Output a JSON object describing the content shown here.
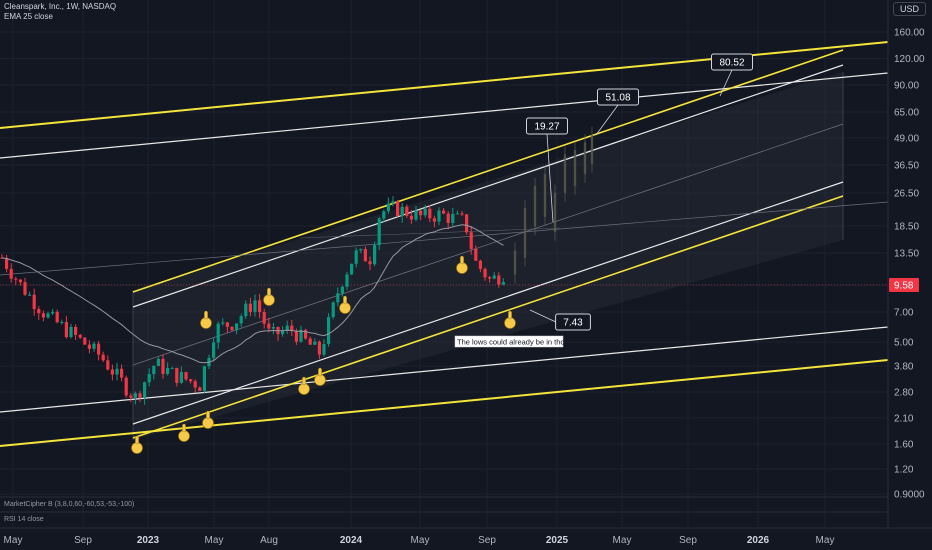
{
  "header": {
    "symbol_line": "Cleanspark, Inc., 1W, NASDAQ",
    "ema_line": "EMA 25 close",
    "indicator_line": "MarketCipher B (3,8,0,60,-60,53,-53,-100)",
    "indicator_line2": "RSI 14 close"
  },
  "currency": "USD",
  "price_axis": {
    "ticks": [
      "160.00",
      "120.00",
      "90.00",
      "65.00",
      "49.00",
      "36.50",
      "26.50",
      "18.50",
      "13.50",
      "9.58",
      "7.00",
      "5.00",
      "3.80",
      "2.80",
      "2.10",
      "1.60",
      "1.20",
      "0.9000"
    ],
    "current_price": "9.58",
    "current_color": "#f23645"
  },
  "time_axis": {
    "labels": [
      {
        "text": "May",
        "year": false
      },
      {
        "text": "Sep",
        "year": false
      },
      {
        "text": "2023",
        "year": true
      },
      {
        "text": "May",
        "year": false
      },
      {
        "text": "Aug",
        "year": false
      },
      {
        "text": "2024",
        "year": true
      },
      {
        "text": "May",
        "year": false
      },
      {
        "text": "Sep",
        "year": false
      },
      {
        "text": "2025",
        "year": true
      },
      {
        "text": "May",
        "year": false
      },
      {
        "text": "Sep",
        "year": false
      },
      {
        "text": "2026",
        "year": true
      },
      {
        "text": "May",
        "year": false
      }
    ]
  },
  "callouts": [
    "80.52",
    "51.08",
    "19.27",
    "7.43"
  ],
  "note": "The lows could already be in tho",
  "colors": {
    "background": "#131722",
    "up": "#089981",
    "down": "#f23645",
    "channel_yellow": "#f5e43a",
    "channel_white": "#e8e8e8",
    "hand": "#f7c948"
  },
  "chart_data": {
    "type": "candlestick",
    "scale": "log",
    "ylim": [
      0.9,
      160
    ],
    "last_price": 9.58,
    "series": [
      {
        "name": "EMA 25 close"
      }
    ],
    "annotations": [
      {
        "label": "80.52",
        "kind": "target"
      },
      {
        "label": "51.08",
        "kind": "target"
      },
      {
        "label": "19.27",
        "kind": "target"
      },
      {
        "label": "7.43",
        "kind": "low"
      },
      {
        "label": "The lows could already be in tho",
        "kind": "note"
      }
    ]
  }
}
